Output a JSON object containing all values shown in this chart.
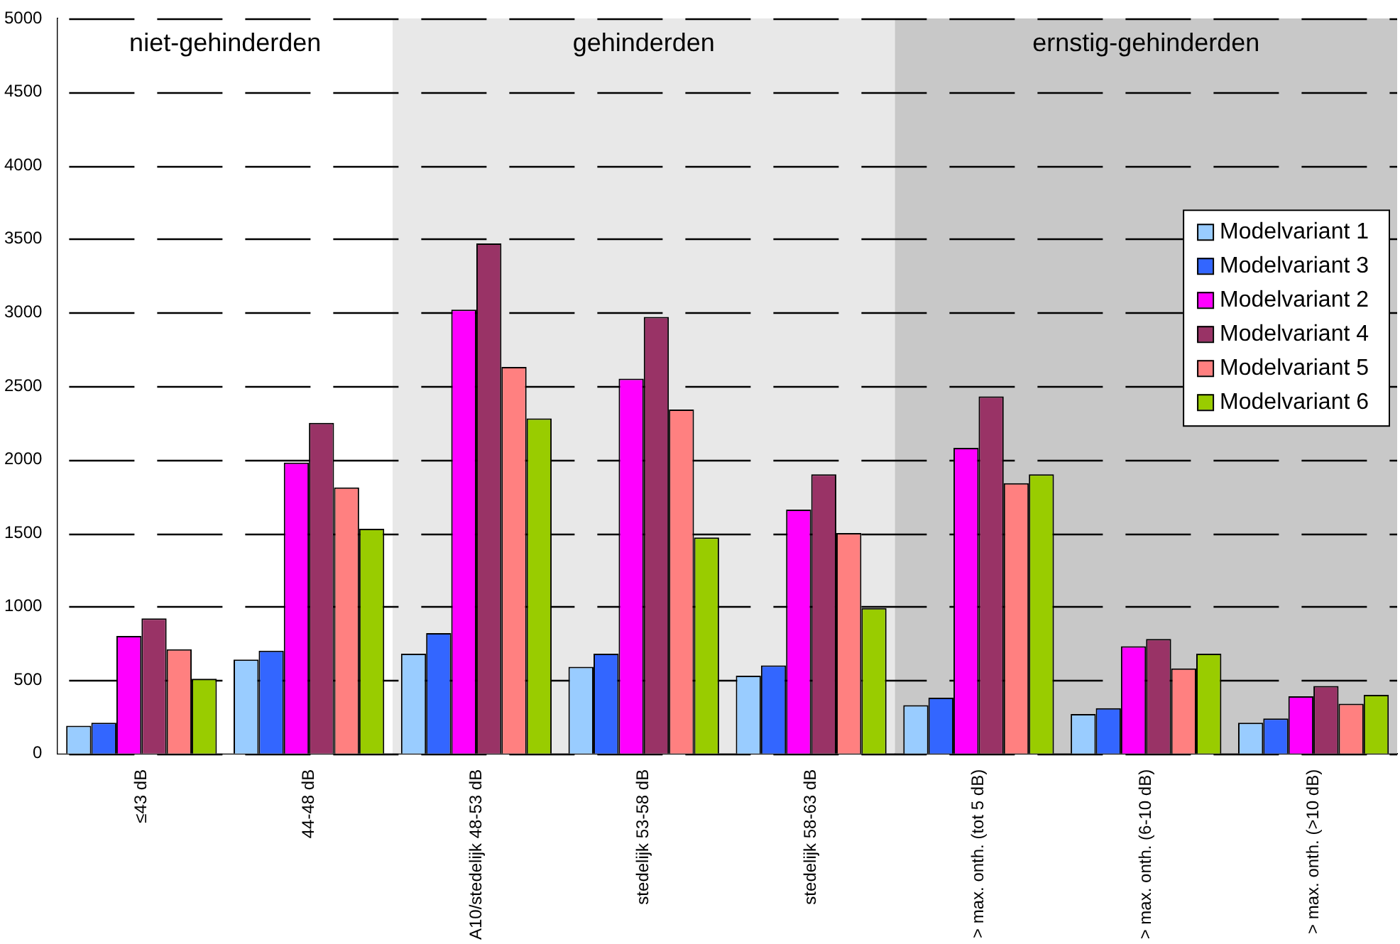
{
  "chart_data": {
    "type": "bar",
    "categories": [
      "≤43 dB",
      "44-48 dB",
      "A10/stedelijk 48-53 dB",
      "stedelijk 53-58 dB",
      "stedelijk 58-63 dB",
      "> max. onth. (tot 5 dB)",
      "> max. onth. (6-10 dB)",
      "> max. onth. (>10 dB)"
    ],
    "series": [
      {
        "name": "Modelvariant 1",
        "color": "#99ccff",
        "values": [
          190,
          640,
          680,
          590,
          530,
          330,
          270,
          210
        ]
      },
      {
        "name": "Modelvariant 3",
        "color": "#3366ff",
        "values": [
          210,
          700,
          820,
          680,
          600,
          380,
          310,
          240
        ]
      },
      {
        "name": "Modelvariant 2",
        "color": "#ff00ff",
        "values": [
          800,
          1980,
          3020,
          2550,
          1660,
          2080,
          730,
          390
        ]
      },
      {
        "name": "Modelvariant 4",
        "color": "#993366",
        "values": [
          920,
          2250,
          3470,
          2970,
          1900,
          2430,
          780,
          460
        ]
      },
      {
        "name": "Modelvariant 5",
        "color": "#ff8080",
        "values": [
          710,
          1810,
          2630,
          2340,
          1500,
          1840,
          580,
          340
        ]
      },
      {
        "name": "Modelvariant 6",
        "color": "#99cc00",
        "values": [
          510,
          1530,
          2280,
          1470,
          990,
          1900,
          680,
          400
        ]
      }
    ],
    "ylim": [
      0,
      5000
    ],
    "yticks": [
      0,
      500,
      1000,
      1500,
      2000,
      2500,
      3000,
      3500,
      4000,
      4500,
      5000
    ],
    "grid": "y",
    "legend": "right",
    "bands": [
      {
        "axis": "x",
        "from": "≤43 dB",
        "to": "44-48 dB",
        "label": "niet-gehinderden",
        "color": "#ffffff"
      },
      {
        "axis": "x",
        "from": "A10/stedelijk 48-53 dB",
        "to": "stedelijk 58-63 dB",
        "label": "gehinderden",
        "color": "#e8e8e8"
      },
      {
        "axis": "x",
        "from": "> max. onth. (tot 5 dB)",
        "to": "> max. onth. (>10 dB)",
        "label": "ernstig-gehinderden",
        "color": "#c8c8c8"
      }
    ]
  }
}
